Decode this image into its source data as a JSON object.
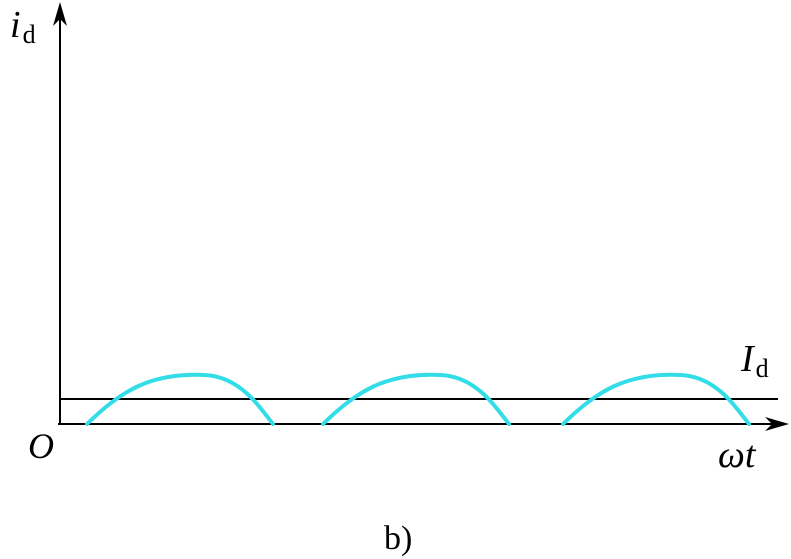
{
  "diagram": {
    "y_axis_label": {
      "main": "i",
      "sub": "d"
    },
    "x_axis_label": "ωt",
    "origin_label": "O",
    "level_label": {
      "main": "I",
      "sub": "d"
    },
    "caption": "b)"
  },
  "colors": {
    "axis": "#000000",
    "waveform": "#33dde8",
    "level_line": "#000000"
  }
}
